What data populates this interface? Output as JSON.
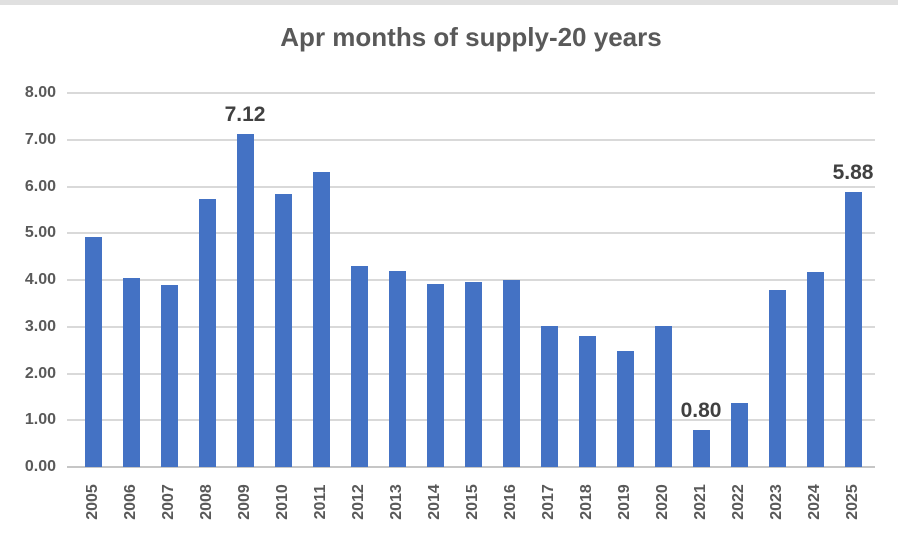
{
  "page": {
    "background": "#FFFFFF",
    "top_strip_color": "#E0E0E0"
  },
  "chart_data": {
    "type": "bar",
    "title": "Apr months of supply-20 years",
    "categories": [
      "2005",
      "2006",
      "2007",
      "2008",
      "2009",
      "2010",
      "2011",
      "2012",
      "2013",
      "2014",
      "2015",
      "2016",
      "2017",
      "2018",
      "2019",
      "2020",
      "2021",
      "2022",
      "2023",
      "2024",
      "2025"
    ],
    "values": [
      4.93,
      4.05,
      3.89,
      5.73,
      7.12,
      5.83,
      6.3,
      4.31,
      4.2,
      3.92,
      3.96,
      3.99,
      3.01,
      2.81,
      2.49,
      3.01,
      0.8,
      1.36,
      3.79,
      4.18,
      5.88
    ],
    "data_labels": [
      {
        "category": "2009",
        "text": "7.12"
      },
      {
        "category": "2021",
        "text": "0.80"
      },
      {
        "category": "2025",
        "text": "5.88"
      }
    ],
    "xlabel": "",
    "ylabel": "",
    "ylim": [
      0,
      8
    ],
    "y_tick_labels": [
      "0.00",
      "1.00",
      "2.00",
      "3.00",
      "4.00",
      "5.00",
      "6.00",
      "7.00",
      "8.00"
    ],
    "grid": true,
    "legend": false,
    "x_tick_rotation_deg": 90,
    "colors": {
      "bar": "#4472C4",
      "gridline": "#D9D9D9",
      "axis_line": "#C6C6C6",
      "axis_text": "#595959",
      "title_text": "#595959",
      "data_label_text": "#404040"
    }
  }
}
